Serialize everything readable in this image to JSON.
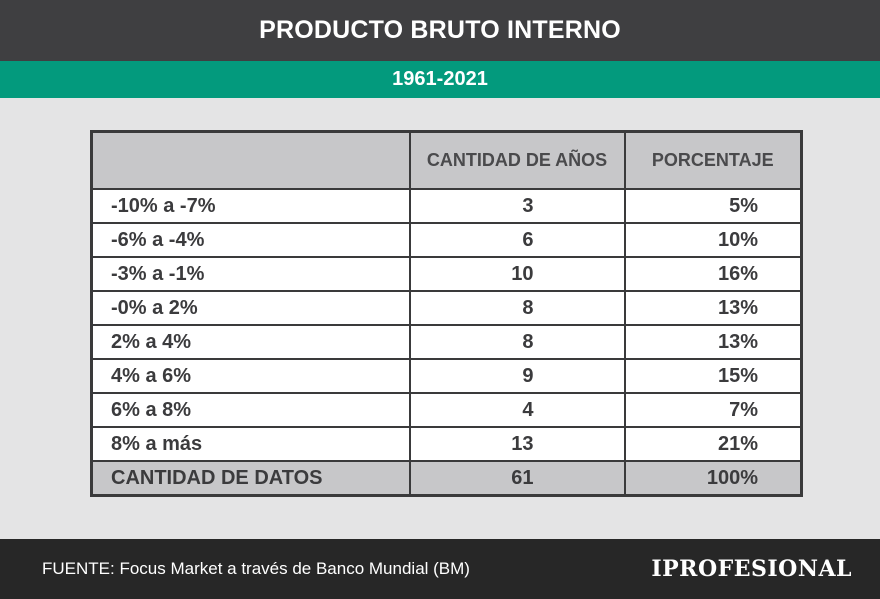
{
  "header": {
    "title": "PRODUCTO BRUTO INTERNO",
    "subtitle": "1961-2021"
  },
  "chart_data": {
    "type": "table",
    "columns": [
      "",
      "CANTIDAD DE AÑOS",
      "PORCENTAJE"
    ],
    "rows": [
      {
        "range": "-10% a -7%",
        "count": "3",
        "pct": "5%"
      },
      {
        "range": "-6% a -4%",
        "count": "6",
        "pct": "10%"
      },
      {
        "range": "-3% a -1%",
        "count": "10",
        "pct": "16%"
      },
      {
        "range": "-0% a 2%",
        "count": "8",
        "pct": "13%"
      },
      {
        "range": "2% a 4%",
        "count": "8",
        "pct": "13%"
      },
      {
        "range": "4% a 6%",
        "count": "9",
        "pct": "15%"
      },
      {
        "range": "6% a 8%",
        "count": "4",
        "pct": "7%"
      },
      {
        "range": "8% a más",
        "count": "13",
        "pct": "21%"
      }
    ],
    "total": {
      "range": "CANTIDAD DE DATOS",
      "count": "61",
      "pct": "100%"
    }
  },
  "footer": {
    "source": "FUENTE: Focus Market a través de Banco Mundial (BM)",
    "logo": "IPROFESIONAL"
  },
  "colors": {
    "title_bg": "#3f3f41",
    "subtitle_bg": "#039a7d",
    "header_cell_bg": "#c7c7c9",
    "footer_bg": "#272727"
  }
}
